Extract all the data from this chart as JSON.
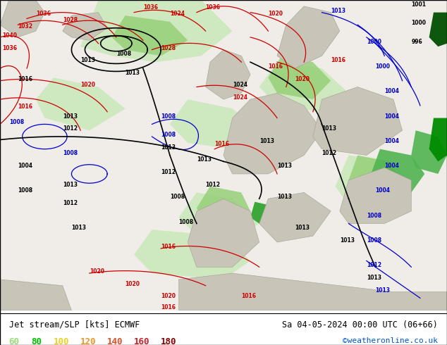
{
  "title_left": "Jet stream/SLP [kts] ECMWF",
  "title_right": "Sa 04-05-2024 00:00 UTC (06+66)",
  "credit": "©weatheronline.co.uk",
  "legend_values": [
    "60",
    "80",
    "100",
    "120",
    "140",
    "160",
    "180"
  ],
  "legend_colors": [
    "#96dc78",
    "#00be00",
    "#f0d020",
    "#f09628",
    "#e05028",
    "#c81e28",
    "#8c0000"
  ],
  "fig_width": 6.34,
  "fig_height": 4.9,
  "dpi": 100,
  "bg_ocean": "#e8f0e0",
  "bg_land": "#d0ccc0",
  "jet_green_light": "#b4dcb4",
  "jet_green_mid": "#78c878",
  "jet_green_strong": "#28a028",
  "jet_green_dark": "#006400"
}
